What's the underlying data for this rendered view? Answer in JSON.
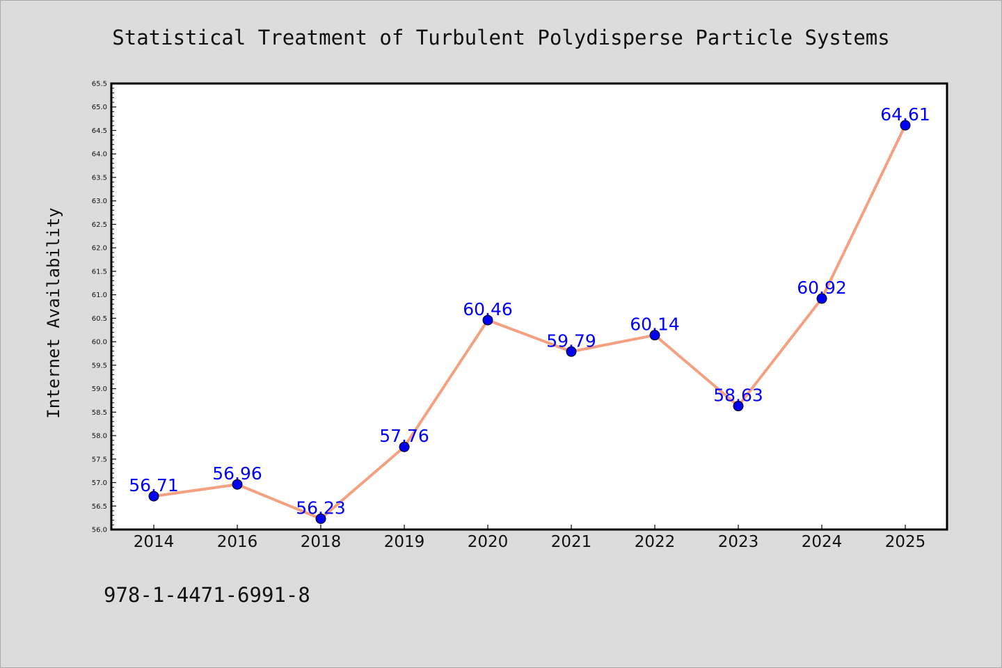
{
  "chart_data": {
    "type": "line",
    "title": "Statistical Treatment of Turbulent Polydisperse Particle Systems",
    "xlabel": "",
    "ylabel": "Internet Availability",
    "categories": [
      "2014",
      "2016",
      "2018",
      "2019",
      "2020",
      "2021",
      "2022",
      "2023",
      "2024",
      "2025"
    ],
    "values": [
      56.71,
      56.96,
      56.23,
      57.76,
      60.46,
      59.79,
      60.14,
      58.63,
      60.92,
      64.61
    ],
    "data_labels": [
      "56.71",
      "56.96",
      "56.23",
      "57.76",
      "60.46",
      "59.79",
      "60.14",
      "58.63",
      "60.92",
      "64.61"
    ],
    "ylim": [
      56.0,
      65.5
    ],
    "yticks": [
      "56.0",
      "56.5",
      "57.0",
      "57.5",
      "58.0",
      "58.5",
      "59.0",
      "59.5",
      "60.0",
      "60.5",
      "61.0",
      "61.5",
      "62.0",
      "62.5",
      "63.0",
      "63.5",
      "64.0",
      "64.5",
      "65.0",
      "65.5"
    ],
    "grid": false,
    "legend": "none",
    "colors": {
      "line": "#f4a081",
      "marker": "#0000ee",
      "data_label": "#0000ff",
      "plot_background": "#ffffff",
      "figure_background": "#dcdcdc"
    }
  },
  "footer": {
    "isbn": "978-1-4471-6991-8"
  }
}
